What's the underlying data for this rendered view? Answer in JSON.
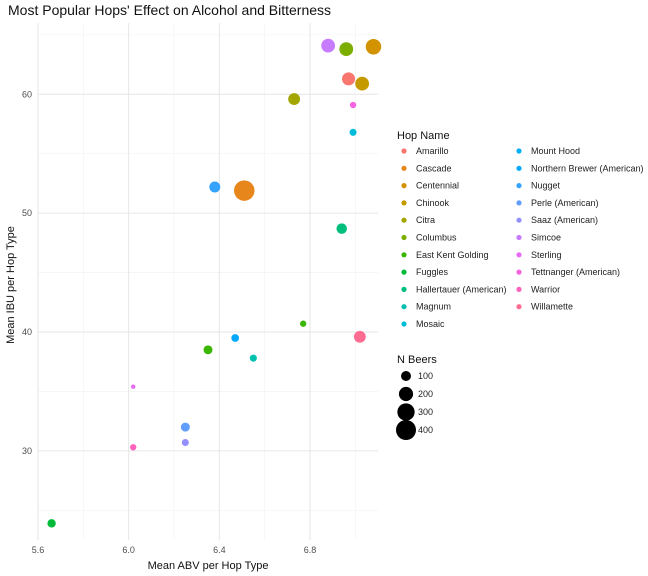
{
  "chart_data": {
    "type": "scatter",
    "title": "Most Popular Hops' Effect on Alcohol and Bitterness",
    "xlabel": "Mean ABV per Hop Type",
    "ylabel": "Mean IBU per Hop Type",
    "xlim": [
      5.6,
      7.1
    ],
    "ylim": [
      22.5,
      66.0
    ],
    "x_ticks": [
      "5.6",
      "6.0",
      "6.4",
      "6.8"
    ],
    "y_ticks": [
      "30",
      "40",
      "50",
      "60"
    ],
    "x_tick_values": [
      5.6,
      6.0,
      6.4,
      6.8
    ],
    "y_tick_values": [
      30,
      40,
      50,
      60
    ],
    "grid": true,
    "legend_color": {
      "title": "Hop Name",
      "placement": "right",
      "items": [
        {
          "name": "Amarillo",
          "color": "#F8766D"
        },
        {
          "name": "Cascade",
          "color": "#E7861B"
        },
        {
          "name": "Centennial",
          "color": "#D39200"
        },
        {
          "name": "Chinook",
          "color": "#C49A00"
        },
        {
          "name": "Citra",
          "color": "#A3A500"
        },
        {
          "name": "Columbus",
          "color": "#7CAE00"
        },
        {
          "name": "East Kent Golding",
          "color": "#39B600"
        },
        {
          "name": "Fuggles",
          "color": "#00BA38"
        },
        {
          "name": "Hallertauer (American)",
          "color": "#00BF7D"
        },
        {
          "name": "Magnum",
          "color": "#00C0AF"
        },
        {
          "name": "Mosaic",
          "color": "#00BCD8"
        },
        {
          "name": "Mount Hood",
          "color": "#00B0F6"
        },
        {
          "name": "Northern Brewer (American)",
          "color": "#00A9FF"
        },
        {
          "name": "Nugget",
          "color": "#35A2FF"
        },
        {
          "name": "Perle (American)",
          "color": "#619CFF"
        },
        {
          "name": "Saaz (American)",
          "color": "#9590FF"
        },
        {
          "name": "Simcoe",
          "color": "#C77CFF"
        },
        {
          "name": "Sterling",
          "color": "#E76BF3"
        },
        {
          "name": "Tettnanger (American)",
          "color": "#F763E0"
        },
        {
          "name": "Warrior",
          "color": "#FF62BC"
        },
        {
          "name": "Willamette",
          "color": "#FF6C91"
        }
      ]
    },
    "legend_size": {
      "title": "N Beers",
      "placement": "right",
      "items": [
        {
          "label": "100",
          "n": 100
        },
        {
          "label": "200",
          "n": 200
        },
        {
          "label": "300",
          "n": 300
        },
        {
          "label": "400",
          "n": 400
        }
      ]
    },
    "points": [
      {
        "x": 6.51,
        "y": 51.9,
        "n": 420,
        "color": "#E7861B"
      },
      {
        "x": 6.38,
        "y": 52.2,
        "n": 120,
        "color": "#35A2FF"
      },
      {
        "x": 6.73,
        "y": 59.6,
        "n": 140,
        "color": "#A3A500"
      },
      {
        "x": 6.88,
        "y": 64.1,
        "n": 190,
        "color": "#C77CFF"
      },
      {
        "x": 6.96,
        "y": 63.8,
        "n": 190,
        "color": "#7CAE00"
      },
      {
        "x": 7.08,
        "y": 64.0,
        "n": 240,
        "color": "#D39200"
      },
      {
        "x": 7.03,
        "y": 60.9,
        "n": 190,
        "color": "#C49A00"
      },
      {
        "x": 6.97,
        "y": 61.3,
        "n": 170,
        "color": "#F8766D"
      },
      {
        "x": 6.99,
        "y": 59.1,
        "n": 40,
        "color": "#F763E0"
      },
      {
        "x": 6.99,
        "y": 56.8,
        "n": 50,
        "color": "#00BCD8"
      },
      {
        "x": 6.94,
        "y": 48.7,
        "n": 110,
        "color": "#00BF7D"
      },
      {
        "x": 6.77,
        "y": 40.7,
        "n": 40,
        "color": "#39B600"
      },
      {
        "x": 7.02,
        "y": 39.6,
        "n": 140,
        "color": "#FF6C91"
      },
      {
        "x": 6.35,
        "y": 38.5,
        "n": 80,
        "color": "#39B600"
      },
      {
        "x": 6.47,
        "y": 39.5,
        "n": 60,
        "color": "#00A9FF"
      },
      {
        "x": 6.55,
        "y": 37.8,
        "n": 50,
        "color": "#00C0AF"
      },
      {
        "x": 6.02,
        "y": 35.4,
        "n": 20,
        "color": "#E76BF3"
      },
      {
        "x": 6.25,
        "y": 32.0,
        "n": 80,
        "color": "#619CFF"
      },
      {
        "x": 6.25,
        "y": 30.7,
        "n": 50,
        "color": "#9590FF"
      },
      {
        "x": 6.02,
        "y": 30.3,
        "n": 40,
        "color": "#FF62BC"
      },
      {
        "x": 5.66,
        "y": 23.9,
        "n": 70,
        "color": "#00BA38"
      }
    ]
  }
}
